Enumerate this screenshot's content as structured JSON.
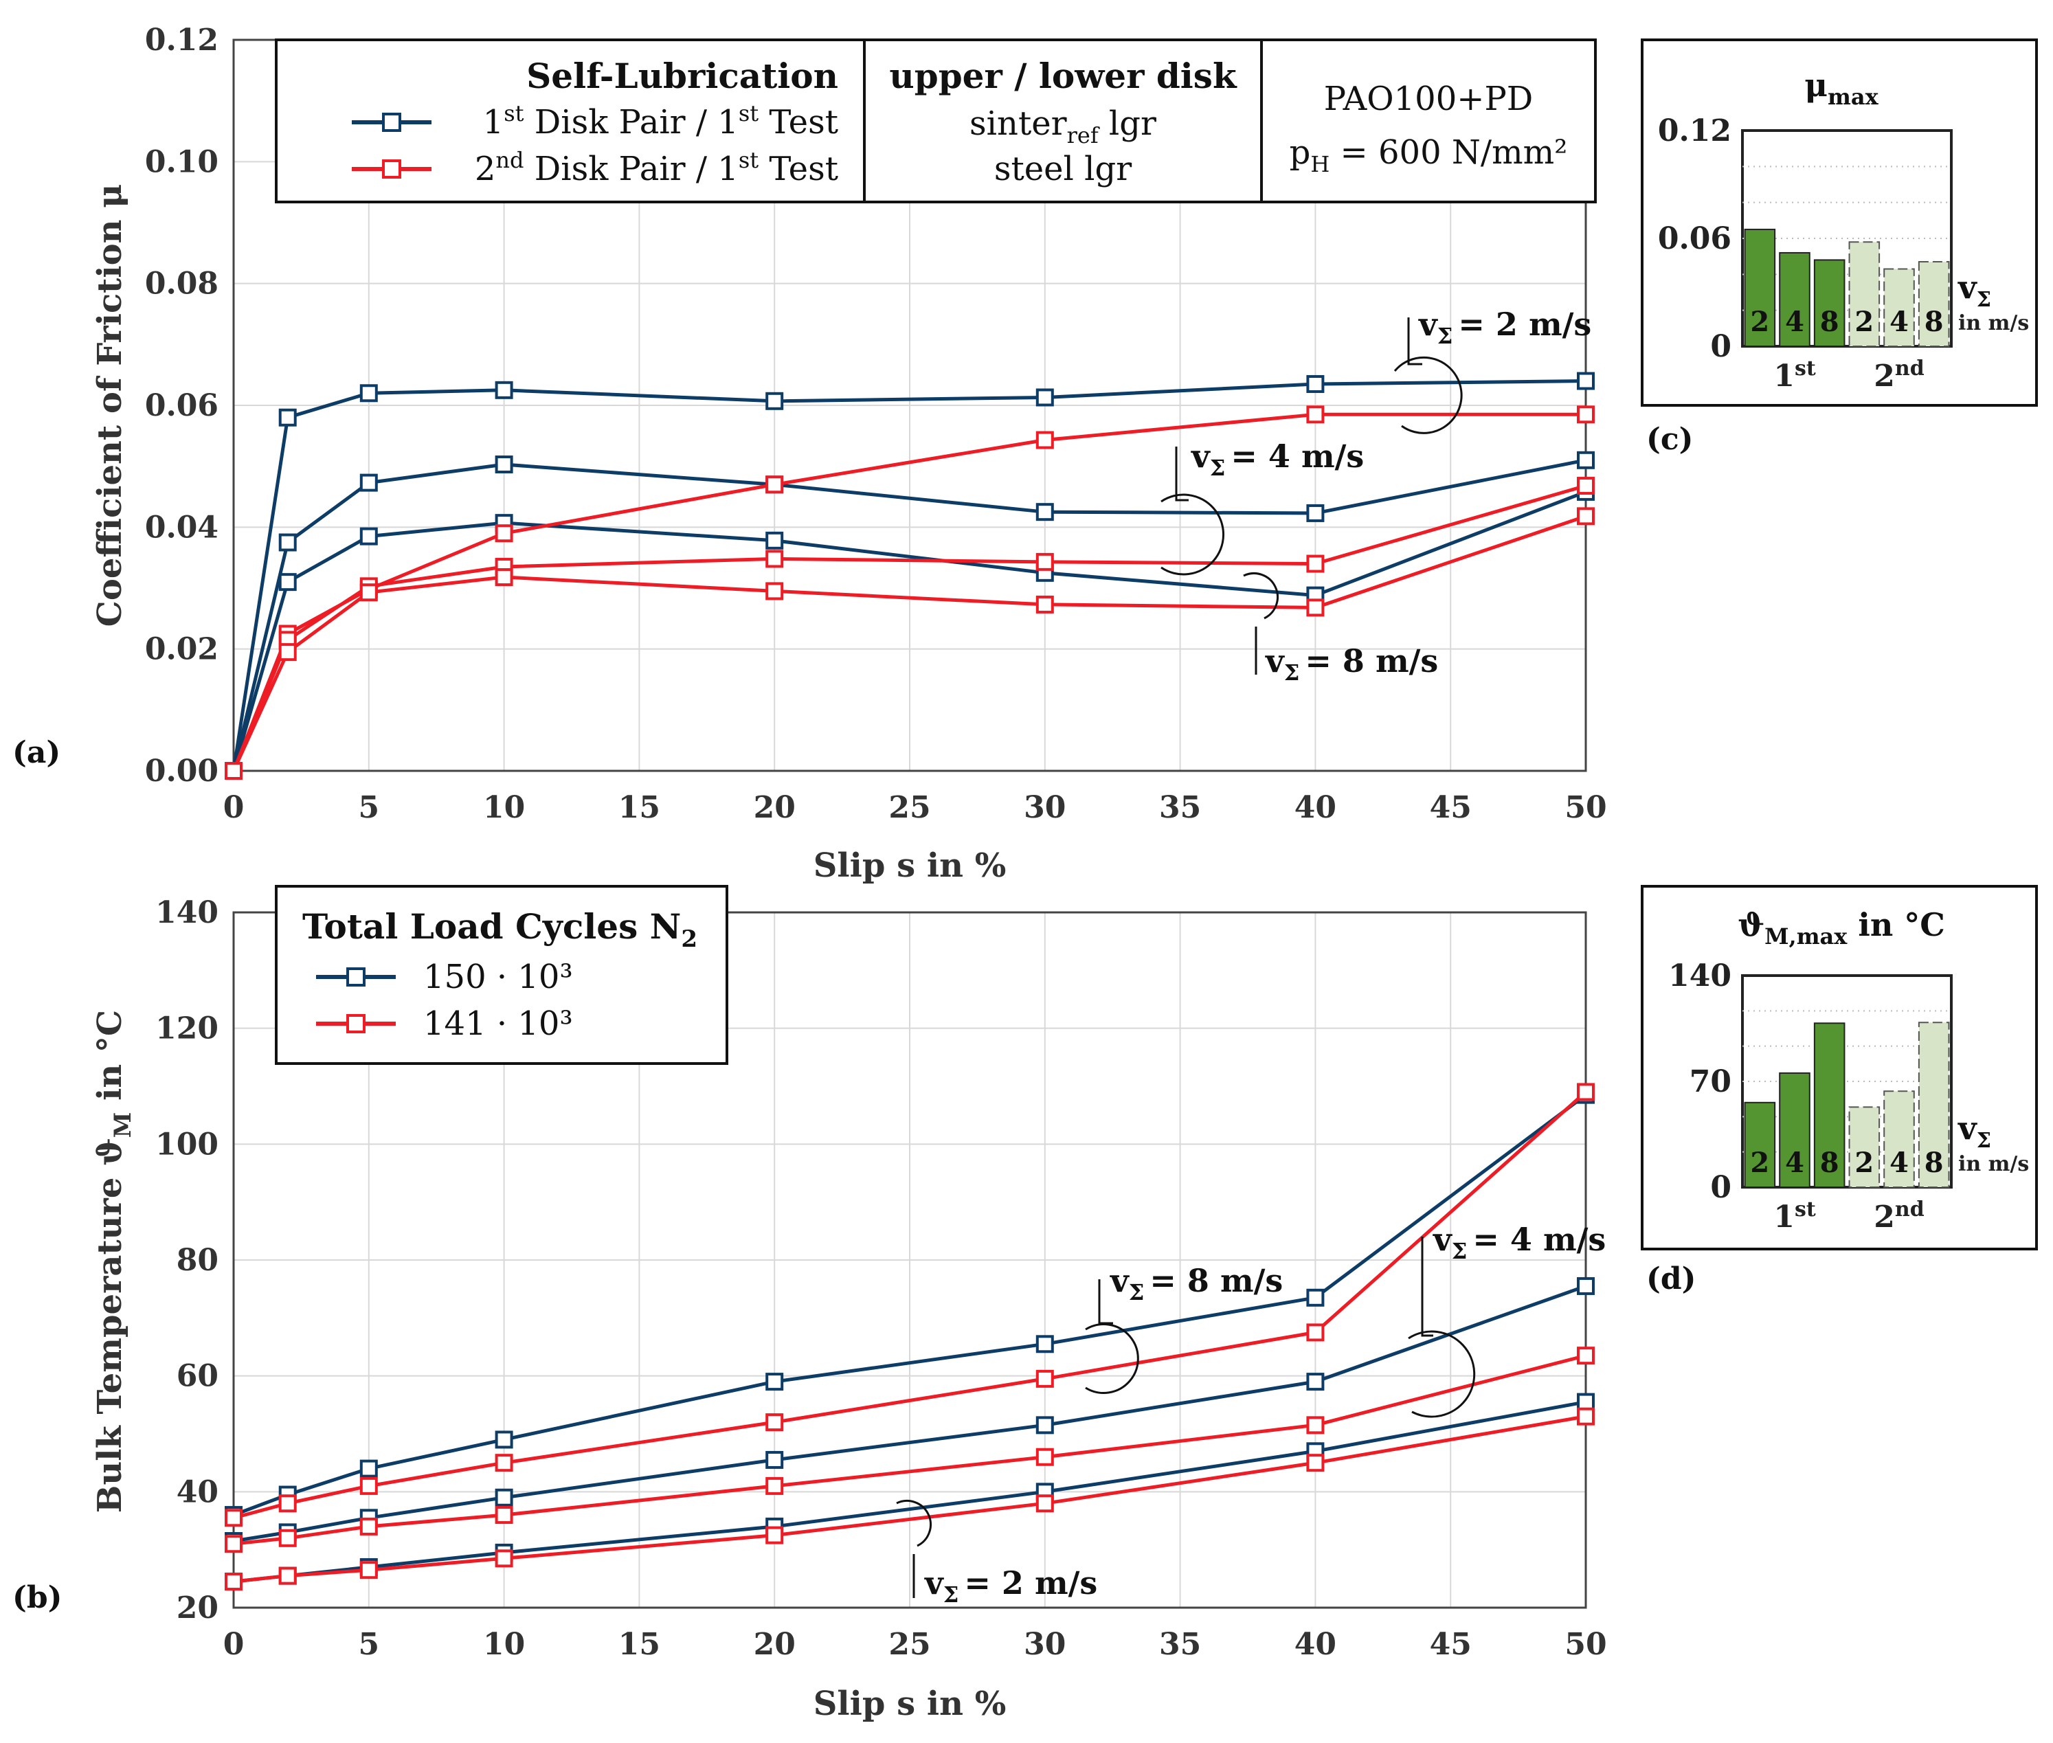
{
  "chart_data": [
    {
      "type": "line",
      "panel_label": "(a)",
      "xlabel": "Slip s in %",
      "ylabel": "Coefficient of Friction μ",
      "xlim": [
        0,
        50
      ],
      "ylim": [
        0,
        0.12
      ],
      "xticks": [
        "0",
        "5",
        "10",
        "15",
        "20",
        "25",
        "30",
        "35",
        "40",
        "45",
        "50"
      ],
      "yticks": [
        "0.00",
        "0.02",
        "0.04",
        "0.06",
        "0.08",
        "0.10",
        "0.12"
      ],
      "x": [
        0,
        2,
        5,
        10,
        20,
        30,
        40,
        50
      ],
      "series": [
        {
          "name": "1st Disk Pair / 1st Test, vΣ = 2 m/s",
          "color": "#0d3d66",
          "values": [
            0,
            0.058,
            0.062,
            0.0625,
            0.0607,
            0.0613,
            0.0635,
            0.064
          ]
        },
        {
          "name": "1st Disk Pair / 1st Test, vΣ = 4 m/s",
          "color": "#0d3d66",
          "values": [
            0,
            0.0375,
            0.0473,
            0.0503,
            0.047,
            0.0425,
            0.0423,
            0.051
          ]
        },
        {
          "name": "1st Disk Pair / 1st Test, vΣ = 8 m/s",
          "color": "#0d3d66",
          "values": [
            0,
            0.031,
            0.0385,
            0.0407,
            0.0378,
            0.0325,
            0.0288,
            0.0458
          ]
        },
        {
          "name": "2nd Disk Pair / 1st Test, vΣ = 2 m/s",
          "color": "#ee1c25",
          "values": [
            0,
            0.0225,
            0.0298,
            0.039,
            0.047,
            0.0543,
            0.0585,
            0.0585
          ]
        },
        {
          "name": "2nd Disk Pair / 1st Test, vΣ = 4 m/s",
          "color": "#ee1c25",
          "values": [
            0,
            0.0215,
            0.0303,
            0.0335,
            0.0348,
            0.0343,
            0.034,
            0.0468
          ]
        },
        {
          "name": "2nd Disk Pair / 1st Test, vΣ = 8 m/s",
          "color": "#ee1c25",
          "values": [
            0,
            0.0195,
            0.0293,
            0.0318,
            0.0295,
            0.0273,
            0.0268,
            0.0418
          ]
        }
      ],
      "legend": {
        "header": "Self-Lubrication",
        "entries": [
          {
            "pre": "1",
            "sup1": "st",
            "mid": " Disk Pair / 1",
            "sup2": "st",
            "post": " Test"
          },
          {
            "pre": "2",
            "sup1": "nd",
            "mid": " Disk Pair / 1",
            "sup2": "st",
            "post": " Test"
          }
        ],
        "disk_header": "upper / lower disk",
        "upper_disk": {
          "base": "sinter",
          "sub": "ref",
          "post": " lgr"
        },
        "lower_disk": "steel lgr",
        "lubricant": "PAO100+PD",
        "pressure": {
          "base": "p",
          "sub": "H",
          "post": " = 600 N/mm²"
        }
      },
      "annotations": [
        {
          "text": "= 2 m/s",
          "symbol": "v",
          "sub": "Σ"
        },
        {
          "text": "= 4 m/s",
          "symbol": "v",
          "sub": "Σ"
        },
        {
          "text": "= 8 m/s",
          "symbol": "v",
          "sub": "Σ"
        }
      ]
    },
    {
      "type": "line",
      "panel_label": "(b)",
      "xlabel": "Slip s in %",
      "ylabel_base": "Bulk Temperature ϑ",
      "ylabel_sub": "M",
      "ylabel_post": " in °C",
      "xlim": [
        0,
        50
      ],
      "ylim": [
        20,
        140
      ],
      "xticks": [
        "0",
        "5",
        "10",
        "15",
        "20",
        "25",
        "30",
        "35",
        "40",
        "45",
        "50"
      ],
      "yticks": [
        "20",
        "40",
        "60",
        "80",
        "100",
        "120",
        "140"
      ],
      "x": [
        0,
        2,
        5,
        10,
        20,
        30,
        40,
        50
      ],
      "series": [
        {
          "name": "150 · 10³, vΣ = 8 m/s",
          "color": "#0d3d66",
          "values": [
            36,
            39.5,
            44,
            49,
            59,
            65.5,
            73.5,
            108.5
          ]
        },
        {
          "name": "150 · 10³, vΣ = 4 m/s",
          "color": "#0d3d66",
          "values": [
            31.5,
            33,
            35.5,
            39,
            45.5,
            51.5,
            59,
            75.5
          ]
        },
        {
          "name": "150 · 10³, vΣ = 2 m/s",
          "color": "#0d3d66",
          "values": [
            24.5,
            25.5,
            27,
            29.5,
            34,
            40,
            47,
            55.5
          ]
        },
        {
          "name": "141 · 10³, vΣ = 8 m/s",
          "color": "#ee1c25",
          "values": [
            35.5,
            38,
            41,
            45,
            52,
            59.5,
            67.5,
            109
          ]
        },
        {
          "name": "141 · 10³, vΣ = 4 m/s",
          "color": "#ee1c25",
          "values": [
            31,
            32,
            34,
            36,
            41,
            46,
            51.5,
            63.5
          ]
        },
        {
          "name": "141 · 10³, vΣ = 2 m/s",
          "color": "#ee1c25",
          "values": [
            24.5,
            25.5,
            26.5,
            28.5,
            32.5,
            38,
            45,
            53
          ]
        }
      ],
      "legend": {
        "header_base": "Total Load Cycles N",
        "header_sub": "2",
        "entries": [
          "150 · 10³",
          "141 · 10³"
        ]
      },
      "annotations": [
        {
          "text": "= 8 m/s",
          "symbol": "v",
          "sub": "Σ"
        },
        {
          "text": "= 4 m/s",
          "symbol": "v",
          "sub": "Σ"
        },
        {
          "text": "= 2 m/s",
          "symbol": "v",
          "sub": "Σ"
        }
      ]
    },
    {
      "type": "bar",
      "panel_label": "(c)",
      "title_base": "μ",
      "title_sub": "max",
      "ylim": [
        0,
        0.12
      ],
      "yticks": [
        "0",
        "0.06",
        "0.12"
      ],
      "categories": [
        "2",
        "4",
        "8",
        "2",
        "4",
        "8"
      ],
      "groups": [
        {
          "name": "1",
          "sup": "st"
        },
        {
          "name": "2",
          "sup": "nd"
        }
      ],
      "values": [
        0.065,
        0.052,
        0.048,
        0.058,
        0.043,
        0.047
      ],
      "colors": [
        "#559531",
        "#559531",
        "#559531",
        "#d7e4c8",
        "#d7e4c8",
        "#d7e4c8"
      ],
      "side_label": {
        "symbol": "v",
        "sub": "Σ",
        "units": "in m/s"
      }
    },
    {
      "type": "bar",
      "panel_label": "(d)",
      "title_base": "ϑ",
      "title_sub": "M,max",
      "title_post": " in °C",
      "ylim": [
        0,
        140
      ],
      "yticks": [
        "0",
        "70",
        "140"
      ],
      "categories": [
        "2",
        "4",
        "8",
        "2",
        "4",
        "8"
      ],
      "groups": [
        {
          "name": "1",
          "sup": "st"
        },
        {
          "name": "2",
          "sup": "nd"
        }
      ],
      "values": [
        56,
        75.5,
        108.5,
        53,
        63.5,
        109
      ],
      "colors": [
        "#559531",
        "#559531",
        "#559531",
        "#d7e4c8",
        "#d7e4c8",
        "#d7e4c8"
      ],
      "side_label": {
        "symbol": "v",
        "sub": "Σ",
        "units": "in m/s"
      }
    }
  ]
}
